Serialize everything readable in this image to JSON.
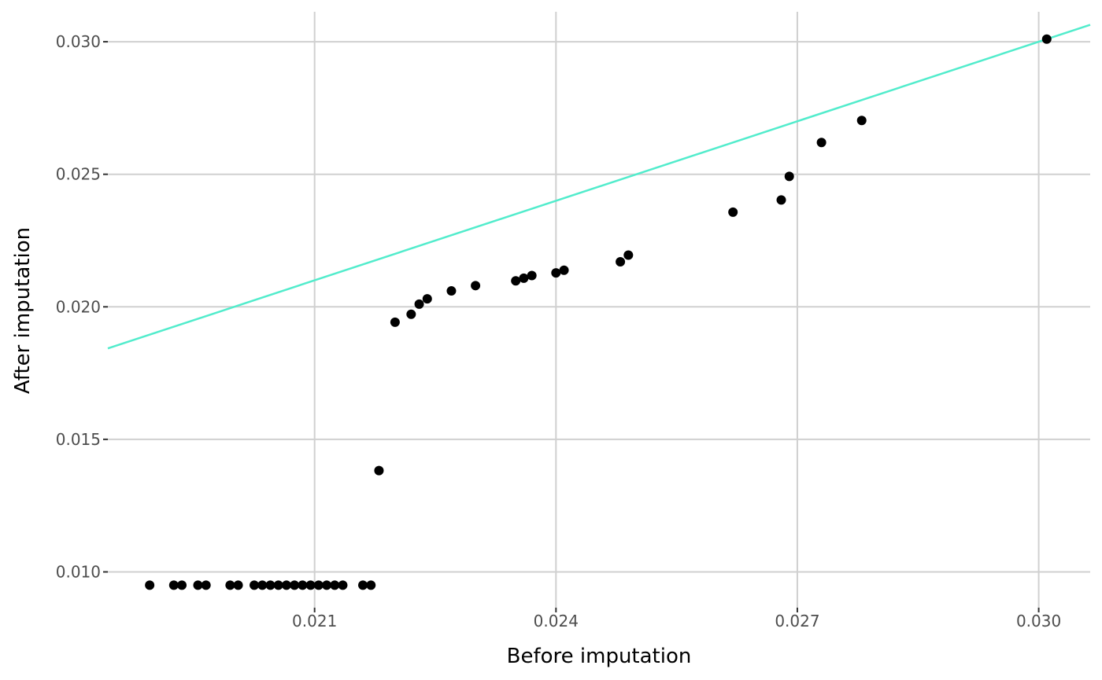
{
  "chart_data": {
    "type": "scatter",
    "title": "",
    "xlabel": "Before imputation",
    "ylabel": "After imputation",
    "xlim": [
      0.01843,
      0.03064
    ],
    "ylim": [
      0.00865,
      0.03113
    ],
    "xticks": [
      0.021,
      0.024,
      0.027,
      0.03
    ],
    "yticks": [
      0.01,
      0.015,
      0.02,
      0.025,
      0.03
    ],
    "xtick_labels": [
      "0.021",
      "0.024",
      "0.027",
      "0.030"
    ],
    "ytick_labels": [
      "0.010",
      "0.015",
      "0.020",
      "0.025",
      "0.030"
    ],
    "grid": true,
    "point_color": "#000000",
    "reference_line": {
      "type": "identity",
      "slope": 1,
      "intercept": 0,
      "color": "#52ECCC"
    },
    "series": [
      {
        "x": [
          0.01895,
          0.01925,
          0.01935,
          0.01955,
          0.01965,
          0.01995,
          0.02005,
          0.02025,
          0.02035,
          0.02045,
          0.02055,
          0.02065,
          0.02075,
          0.02085,
          0.02095,
          0.02105,
          0.02115,
          0.02125,
          0.02135,
          0.0216,
          0.0217,
          0.0218,
          0.022,
          0.0222,
          0.0223,
          0.0224,
          0.0227,
          0.023,
          0.0235,
          0.0236,
          0.0237,
          0.024,
          0.0241,
          0.0248,
          0.0249,
          0.0262,
          0.0268,
          0.0269,
          0.0273,
          0.0278,
          0.0301
        ],
        "y": [
          0.0095,
          0.0095,
          0.0095,
          0.0095,
          0.0095,
          0.0095,
          0.0095,
          0.0095,
          0.0095,
          0.0095,
          0.0095,
          0.0095,
          0.0095,
          0.0095,
          0.0095,
          0.0095,
          0.0095,
          0.0095,
          0.0095,
          0.0095,
          0.0095,
          0.01382,
          0.01942,
          0.01972,
          0.0201,
          0.0203,
          0.0206,
          0.0208,
          0.02098,
          0.02108,
          0.02118,
          0.02128,
          0.02138,
          0.0217,
          0.02195,
          0.02357,
          0.02403,
          0.02492,
          0.0262,
          0.02703,
          0.0301
        ]
      }
    ]
  }
}
